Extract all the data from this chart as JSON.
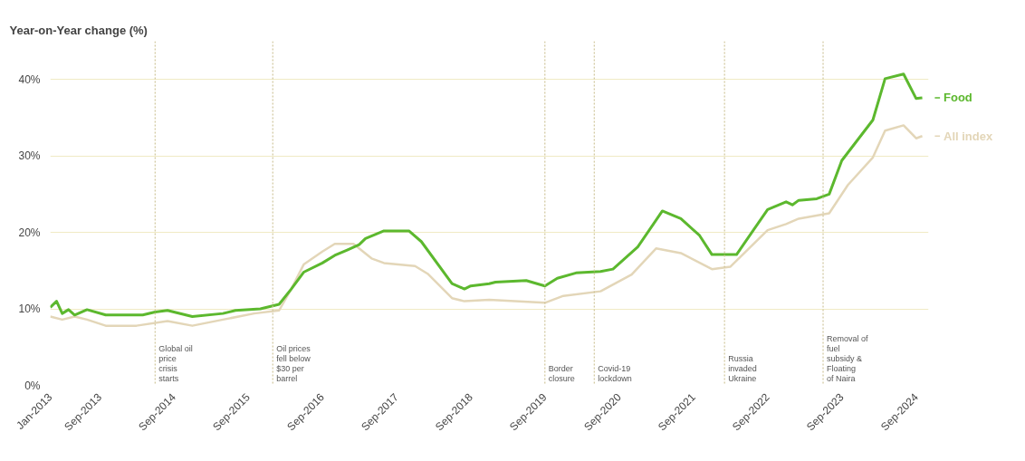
{
  "chart_data": {
    "type": "line",
    "ylabel": "Year-on-Year change (%)",
    "xlim": [
      "2013-01",
      "2024-11"
    ],
    "xticks": [
      {
        "value": "2013-01",
        "label": "Jan-2013"
      },
      {
        "value": "2013-09",
        "label": "Sep-2013"
      },
      {
        "value": "2014-09",
        "label": "Sep-2014"
      },
      {
        "value": "2015-09",
        "label": "Sep-2015"
      },
      {
        "value": "2016-09",
        "label": "Sep-2016"
      },
      {
        "value": "2017-09",
        "label": "Sep-2017"
      },
      {
        "value": "2018-09",
        "label": "Sep-2018"
      },
      {
        "value": "2019-09",
        "label": "Sep-2019"
      },
      {
        "value": "2020-09",
        "label": "Sep-2020"
      },
      {
        "value": "2021-09",
        "label": "Sep-2021"
      },
      {
        "value": "2022-09",
        "label": "Sep-2022"
      },
      {
        "value": "2023-09",
        "label": "Sep-2023"
      },
      {
        "value": "2024-09",
        "label": "Sep-2024"
      }
    ],
    "ylim": [
      0,
      45
    ],
    "yticks": [
      {
        "value": 0,
        "label": "0%"
      },
      {
        "value": 10,
        "label": "10%"
      },
      {
        "value": 20,
        "label": "20%"
      },
      {
        "value": 30,
        "label": "30%"
      },
      {
        "value": 40,
        "label": "40%"
      }
    ],
    "grid": "y",
    "legend": "right",
    "line_style": "solid",
    "marker": "none",
    "series": [
      {
        "name": "All index",
        "color": "#e3d6b8",
        "x": [
          "2013-01",
          "2013-03",
          "2013-05",
          "2013-07",
          "2013-10",
          "2014-03",
          "2014-08",
          "2014-12",
          "2015-05",
          "2015-10",
          "2016-02",
          "2016-04",
          "2016-06",
          "2016-09",
          "2016-11",
          "2017-02",
          "2017-05",
          "2017-07",
          "2017-12",
          "2018-02",
          "2018-06",
          "2018-08",
          "2018-12",
          "2019-09",
          "2019-12",
          "2020-06",
          "2020-11",
          "2021-03",
          "2021-07",
          "2021-12",
          "2022-03",
          "2022-09",
          "2022-12",
          "2023-02",
          "2023-07",
          "2023-10",
          "2024-02",
          "2024-04",
          "2024-07",
          "2024-09",
          "2024-10"
        ],
        "values": [
          9.0,
          8.6,
          9.0,
          8.6,
          7.8,
          7.8,
          8.4,
          7.8,
          8.6,
          9.4,
          9.8,
          12.6,
          15.8,
          17.5,
          18.5,
          18.5,
          16.6,
          16.0,
          15.6,
          14.6,
          11.4,
          11.0,
          11.2,
          10.8,
          11.7,
          12.3,
          14.5,
          17.9,
          17.3,
          15.2,
          15.5,
          20.3,
          21.1,
          21.8,
          22.5,
          26.2,
          29.8,
          33.3,
          34.0,
          32.3,
          32.6
        ]
      },
      {
        "name": "Food",
        "color": "#5cb82e",
        "x": [
          "2013-01",
          "2013-02",
          "2013-03",
          "2013-04",
          "2013-05",
          "2013-07",
          "2013-10",
          "2014-04",
          "2014-06",
          "2014-08",
          "2014-12",
          "2015-05",
          "2015-07",
          "2015-11",
          "2016-02",
          "2016-04",
          "2016-06",
          "2016-09",
          "2016-11",
          "2017-01",
          "2017-03",
          "2017-04",
          "2017-07",
          "2017-11",
          "2018-01",
          "2018-06",
          "2018-08",
          "2018-09",
          "2018-12",
          "2019-01",
          "2019-06",
          "2019-09",
          "2019-11",
          "2020-02",
          "2020-06",
          "2020-08",
          "2020-12",
          "2021-04",
          "2021-07",
          "2021-10",
          "2021-12",
          "2022-01",
          "2022-04",
          "2022-09",
          "2022-12",
          "2023-01",
          "2023-02",
          "2023-05",
          "2023-07",
          "2023-09",
          "2024-02",
          "2024-04",
          "2024-07",
          "2024-09",
          "2024-10"
        ],
        "values": [
          10.2,
          11.0,
          9.4,
          9.9,
          9.2,
          9.9,
          9.2,
          9.2,
          9.6,
          9.8,
          9.0,
          9.4,
          9.8,
          10.0,
          10.6,
          12.6,
          14.8,
          16.0,
          17.0,
          17.7,
          18.4,
          19.2,
          20.2,
          20.2,
          18.8,
          13.3,
          12.6,
          13.0,
          13.3,
          13.5,
          13.7,
          13.0,
          14.0,
          14.7,
          14.9,
          15.2,
          18.1,
          22.8,
          21.8,
          19.6,
          17.1,
          17.1,
          17.1,
          23.0,
          24.0,
          23.6,
          24.2,
          24.4,
          25.0,
          29.4,
          34.7,
          40.1,
          40.7,
          37.5,
          37.6
        ]
      }
    ],
    "ref_lines": [
      {
        "axis": "x",
        "value": "2014-06",
        "label": "Global oil price crisis starts",
        "color": "#cfc59a",
        "line_style": "dotted"
      },
      {
        "axis": "x",
        "value": "2016-01",
        "label": "Oil prices fell below $30 per barrel",
        "color": "#cfc59a",
        "line_style": "dotted"
      },
      {
        "axis": "x",
        "value": "2019-09",
        "label": "Border closure",
        "color": "#cfc59a",
        "line_style": "dotted"
      },
      {
        "axis": "x",
        "value": "2020-05",
        "label": "Covid-19 lockdown",
        "color": "#cfc59a",
        "line_style": "dotted"
      },
      {
        "axis": "x",
        "value": "2022-02",
        "label": "Russia invaded Ukraine",
        "color": "#cfc59a",
        "line_style": "dotted"
      },
      {
        "axis": "x",
        "value": "2023-06",
        "label": "Removal of fuel subsidy & Floating of Naira",
        "color": "#cfc59a",
        "line_style": "dotted"
      }
    ]
  }
}
